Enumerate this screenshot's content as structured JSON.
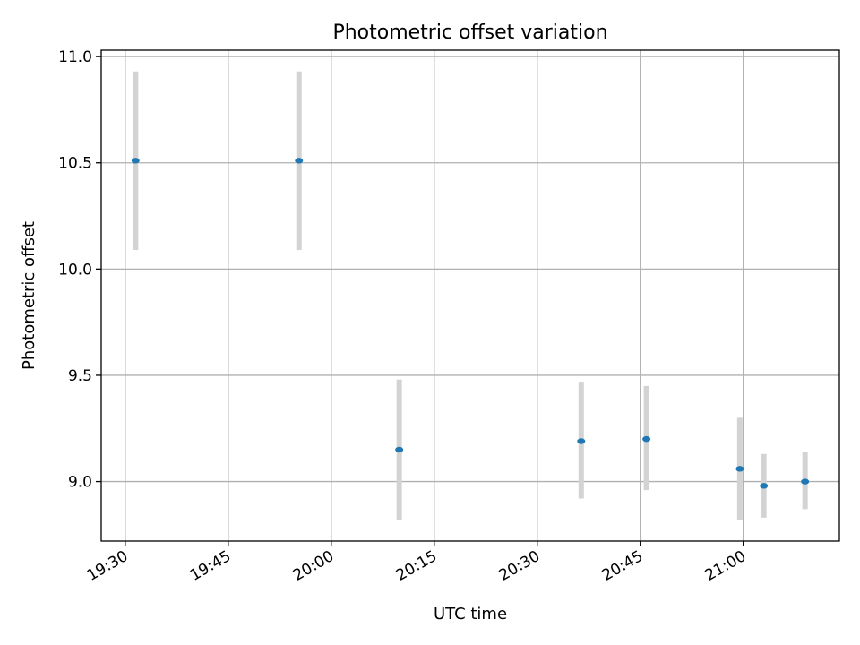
{
  "chart_data": {
    "type": "scatter",
    "title": "Photometric offset variation",
    "xlabel": "UTC time",
    "ylabel": "Photometric offset",
    "x_tick_labels": [
      "19:30",
      "19:45",
      "20:00",
      "20:15",
      "20:30",
      "20:45",
      "21:00"
    ],
    "x_ticks": [
      "19:30",
      "19:45",
      "20:00",
      "20:15",
      "20:30",
      "20:45",
      "21:00"
    ],
    "x_range": [
      "19:26:30",
      "21:14:00"
    ],
    "y_ticks": [
      9.0,
      9.5,
      10.0,
      10.5,
      11.0
    ],
    "y_tick_labels": [
      "9.0",
      "9.5",
      "10.0",
      "10.5",
      "11.0"
    ],
    "ylim": [
      8.72,
      11.03
    ],
    "grid": true,
    "series": [
      {
        "x": [
          "19:31:30",
          "19:55:18",
          "20:09:54",
          "20:36:24",
          "20:45:54",
          "20:59:30",
          "21:03:00",
          "21:09:00"
        ],
        "y": [
          10.51,
          10.51,
          9.15,
          9.19,
          9.2,
          9.06,
          8.98,
          9.0
        ],
        "yerr_low": [
          10.09,
          10.09,
          8.82,
          8.92,
          8.96,
          8.82,
          8.83,
          8.87
        ],
        "yerr_high": [
          10.93,
          10.93,
          9.48,
          9.47,
          9.45,
          9.3,
          9.13,
          9.14
        ],
        "color": "#1f77b4",
        "errorbar_color": "#d3d3d3"
      }
    ]
  }
}
